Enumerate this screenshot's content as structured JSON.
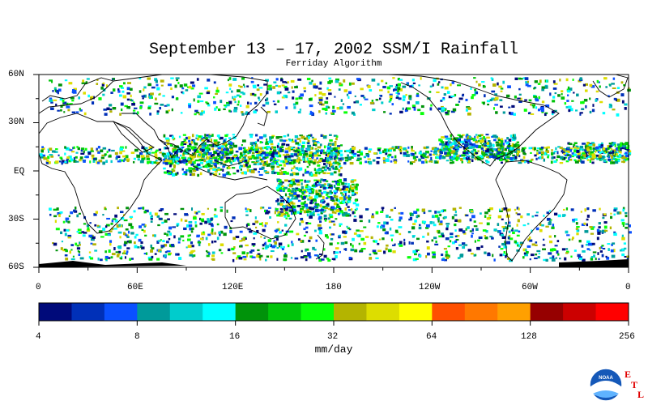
{
  "title": "September 13 – 17, 2002 SSM/I Rainfall",
  "subtitle": "Ferriday Algorithm",
  "lat_labels": [
    "60N",
    "30N",
    "EQ",
    "30S",
    "60S"
  ],
  "lon_labels": [
    "0",
    "60E",
    "120E",
    "180",
    "120W",
    "60W",
    "0"
  ],
  "scale": {
    "tick_labels": [
      "4",
      "8",
      "16",
      "32",
      "64",
      "128",
      "256"
    ],
    "unit": "mm/day",
    "colors": [
      "#000a7a",
      "#0030b8",
      "#0a50ff",
      "#009a9a",
      "#00cccc",
      "#00ffff",
      "#00930a",
      "#00c40a",
      "#08ff08",
      "#b4b400",
      "#dddd00",
      "#ffff00",
      "#ff5000",
      "#ff7800",
      "#ffa000",
      "#960000",
      "#cc0000",
      "#ff0000"
    ]
  },
  "logo": {
    "text": "NOAA",
    "letters": [
      "E",
      "T",
      "L"
    ]
  }
}
